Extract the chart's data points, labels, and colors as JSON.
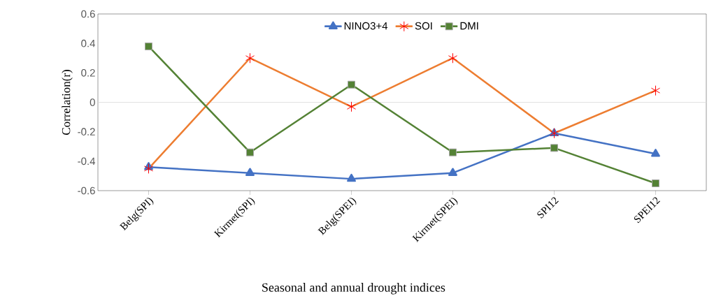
{
  "chart_data": {
    "type": "line",
    "xlabel": "Seasonal and annual drought indices",
    "ylabel": "Correlation(r)",
    "categories": [
      "Belg(SPI)",
      "Kirmet(SPI)",
      "Belg(SPEI)",
      "Kirmet(SPEI)",
      "SPI12",
      "SPEI12"
    ],
    "series": [
      {
        "name": "NINO3+4",
        "color": "#4472c4",
        "marker": "triangle",
        "values": [
          -0.44,
          -0.48,
          -0.52,
          -0.48,
          -0.21,
          -0.35
        ]
      },
      {
        "name": "SOI",
        "color": "#ed7d31",
        "marker": "cross",
        "values": [
          -0.45,
          0.3,
          -0.03,
          0.3,
          -0.21,
          0.08
        ]
      },
      {
        "name": "DMI",
        "color": "#548235",
        "marker": "square",
        "values": [
          0.38,
          -0.34,
          0.12,
          -0.34,
          -0.31,
          -0.55
        ]
      }
    ],
    "ylim": [
      -0.6,
      0.6
    ],
    "yticks": [
      -0.6,
      -0.4,
      -0.2,
      0,
      0.2,
      0.4,
      0.6
    ],
    "ref_lines": [
      {
        "axis": "y",
        "value": 0,
        "color": "#d9d9d9"
      }
    ],
    "legend": "top",
    "grid": false
  }
}
